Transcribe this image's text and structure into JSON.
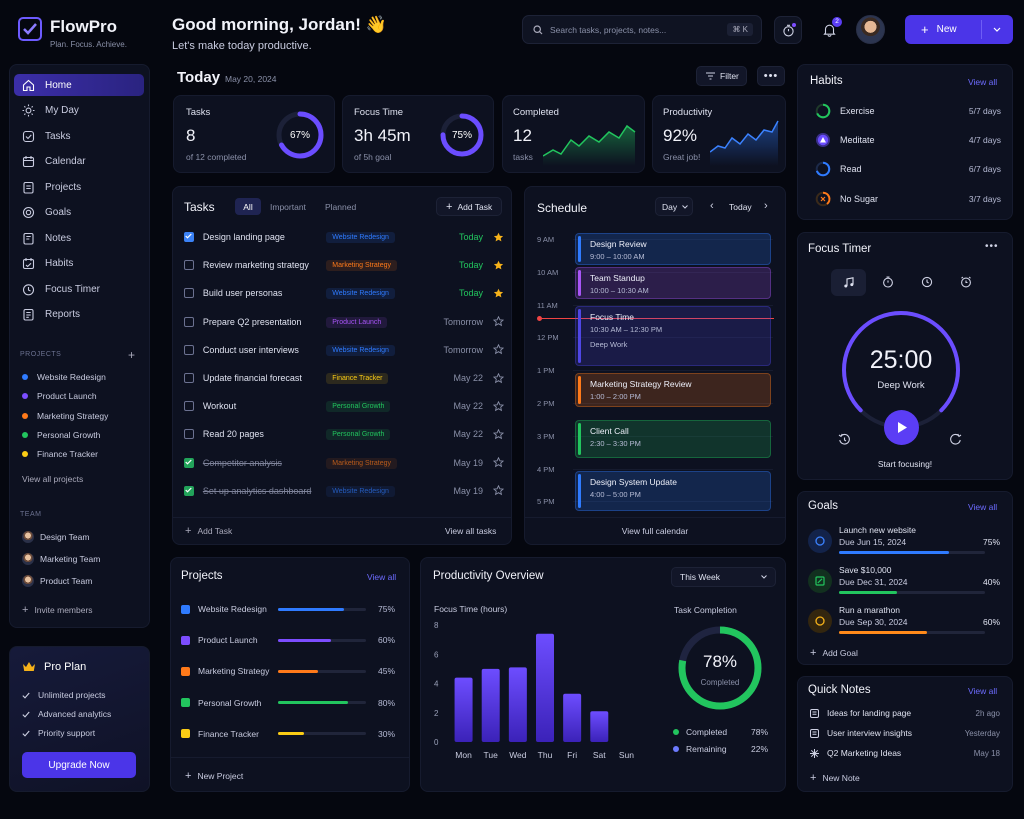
{
  "brand": {
    "name": "FlowPro",
    "tagline": "Plan. Focus. Achieve."
  },
  "header": {
    "greeting": "Good morning, Jordan! 👋",
    "subgreeting": "Let's make today productive.",
    "search_placeholder": "Search tasks, projects, notes...",
    "search_shortcut": "⌘ K",
    "notification_count": "2",
    "new_label": "New"
  },
  "sidebar": {
    "items": [
      {
        "label": "Home",
        "icon": "home-icon",
        "active": true
      },
      {
        "label": "My Day",
        "icon": "sun-icon"
      },
      {
        "label": "Tasks",
        "icon": "check-square-icon"
      },
      {
        "label": "Calendar",
        "icon": "calendar-icon"
      },
      {
        "label": "Projects",
        "icon": "folder-icon"
      },
      {
        "label": "Goals",
        "icon": "target-icon"
      },
      {
        "label": "Notes",
        "icon": "note-icon"
      },
      {
        "label": "Habits",
        "icon": "habit-icon"
      },
      {
        "label": "Focus Timer",
        "icon": "clock-icon"
      },
      {
        "label": "Reports",
        "icon": "report-icon"
      }
    ],
    "projects_heading": "PROJECTS",
    "projects": [
      {
        "name": "Website Redesign",
        "color": "#2f7bff"
      },
      {
        "name": "Product Launch",
        "color": "#7c4dff"
      },
      {
        "name": "Marketing Strategy",
        "color": "#ff7a1a"
      },
      {
        "name": "Personal Growth",
        "color": "#22c55e"
      },
      {
        "name": "Finance Tracker",
        "color": "#facc15"
      }
    ],
    "view_all_projects": "View all projects",
    "team_heading": "TEAM",
    "teams": [
      "Design Team",
      "Marketing Team",
      "Product Team"
    ],
    "invite": "Invite members",
    "pro": {
      "title": "Pro Plan",
      "features": [
        "Unlimited projects",
        "Advanced analytics",
        "Priority support"
      ],
      "cta": "Upgrade Now"
    }
  },
  "today": {
    "title": "Today",
    "date": "May 20, 2024",
    "filter": "Filter"
  },
  "stats": [
    {
      "label": "Tasks",
      "value": "8",
      "sub": "of 12 completed",
      "ring": "67%",
      "ring_value": 0.67
    },
    {
      "label": "Focus Time",
      "value": "3h 45m",
      "sub": "of 5h goal",
      "ring": "75%",
      "ring_value": 0.75
    },
    {
      "label": "Completed",
      "value": "12",
      "sub": "tasks"
    },
    {
      "label": "Productivity",
      "value": "92%",
      "sub": "Great job!"
    }
  ],
  "tasks": {
    "title": "Tasks",
    "tabs": [
      "All",
      "Important",
      "Planned"
    ],
    "add": "Add Task",
    "footer_add": "Add Task",
    "footer_view": "View all tasks",
    "rows": [
      {
        "name": "Design landing page",
        "tag": "Website Redesign",
        "tag_color": "#2f7bff",
        "date": "Today",
        "today": true,
        "starred": true,
        "checked": true,
        "done": false
      },
      {
        "name": "Review marketing strategy",
        "tag": "Marketing Strategy",
        "tag_color": "#ff7a1a",
        "date": "Today",
        "today": true,
        "starred": true,
        "checked": false,
        "done": false
      },
      {
        "name": "Build user personas",
        "tag": "Website Redesign",
        "tag_color": "#2f7bff",
        "date": "Today",
        "today": true,
        "starred": true,
        "checked": false,
        "done": false
      },
      {
        "name": "Prepare Q2 presentation",
        "tag": "Product Launch",
        "tag_color": "#a855f7",
        "date": "Tomorrow",
        "today": false,
        "starred": false,
        "checked": false,
        "done": false
      },
      {
        "name": "Conduct user interviews",
        "tag": "Website Redesign",
        "tag_color": "#2f7bff",
        "date": "Tomorrow",
        "today": false,
        "starred": false,
        "checked": false,
        "done": false
      },
      {
        "name": "Update financial forecast",
        "tag": "Finance Tracker",
        "tag_color": "#facc15",
        "date": "May 22",
        "today": false,
        "starred": false,
        "checked": false,
        "done": false
      },
      {
        "name": "Workout",
        "tag": "Personal Growth",
        "tag_color": "#22c55e",
        "date": "May 22",
        "today": false,
        "starred": false,
        "checked": false,
        "done": false
      },
      {
        "name": "Read 20 pages",
        "tag": "Personal Growth",
        "tag_color": "#22c55e",
        "date": "May 22",
        "today": false,
        "starred": false,
        "checked": false,
        "done": false
      },
      {
        "name": "Competitor analysis",
        "tag": "Marketing Strategy",
        "tag_color": "#ff7a1a",
        "date": "May 19",
        "today": false,
        "starred": false,
        "checked": true,
        "done": true
      },
      {
        "name": "Set up analytics dashboard",
        "tag": "Website Redesign",
        "tag_color": "#2f7bff",
        "date": "May 19",
        "today": false,
        "starred": false,
        "checked": true,
        "done": true
      }
    ]
  },
  "schedule": {
    "title": "Schedule",
    "view": "Day",
    "today": "Today",
    "footer": "View full calendar",
    "hours": [
      "9 AM",
      "10 AM",
      "11 AM",
      "12 PM",
      "1 PM",
      "2 PM",
      "3 PM",
      "4 PM",
      "5 PM"
    ],
    "events": [
      {
        "title": "Design Review",
        "time": "9:00 – 10:00 AM",
        "color": "#2f7bff"
      },
      {
        "title": "Team Standup",
        "time": "10:00 – 10:30 AM",
        "color": "#a855f7"
      },
      {
        "title": "Focus Time",
        "time": "10:30 AM – 12:30 PM",
        "note": "Deep Work",
        "color": "#4f46e5"
      },
      {
        "title": "Marketing Strategy Review",
        "time": "1:00 – 2:00 PM",
        "color": "#ff7a1a"
      },
      {
        "title": "Client Call",
        "time": "2:30 – 3:30 PM",
        "color": "#22c55e"
      },
      {
        "title": "Design System Update",
        "time": "4:00 – 5:00 PM",
        "color": "#2f7bff"
      }
    ]
  },
  "habits": {
    "title": "Habits",
    "view_all": "View all",
    "items": [
      {
        "name": "Exercise",
        "value": "5/7 days",
        "color": "#22c55e"
      },
      {
        "name": "Meditate",
        "value": "4/7 days",
        "color": "#7c4dff"
      },
      {
        "name": "Read",
        "value": "6/7 days",
        "color": "#2f7bff"
      },
      {
        "name": "No Sugar",
        "value": "3/7 days",
        "color": "#ff7a1a"
      }
    ]
  },
  "focus": {
    "title": "Focus Timer",
    "time": "25:00",
    "mode": "Deep Work",
    "cta": "Start focusing!"
  },
  "goals": {
    "title": "Goals",
    "view_all": "View all",
    "add": "Add Goal",
    "items": [
      {
        "name": "Launch new website",
        "due": "Due Jun 15, 2024",
        "pct": "75%",
        "value": 0.75,
        "color": "#2f7bff"
      },
      {
        "name": "Save $10,000",
        "due": "Due Dec 31, 2024",
        "pct": "40%",
        "value": 0.4,
        "color": "#22c55e"
      },
      {
        "name": "Run a marathon",
        "due": "Due Sep 30, 2024",
        "pct": "60%",
        "value": 0.6,
        "color": "#ff8a1a"
      }
    ]
  },
  "quicknotes": {
    "title": "Quick Notes",
    "view_all": "View all",
    "add": "New Note",
    "items": [
      {
        "name": "Ideas for landing page",
        "date": "2h ago"
      },
      {
        "name": "User interview insights",
        "date": "Yesterday"
      },
      {
        "name": "Q2 Marketing Ideas",
        "date": "May 18"
      }
    ]
  },
  "projects_card": {
    "title": "Projects",
    "view_all": "View all",
    "add": "New Project",
    "items": [
      {
        "name": "Website Redesign",
        "pct": "75%",
        "value": 0.75,
        "color": "#2f7bff"
      },
      {
        "name": "Product Launch",
        "pct": "60%",
        "value": 0.6,
        "color": "#7c4dff"
      },
      {
        "name": "Marketing Strategy",
        "pct": "45%",
        "value": 0.45,
        "color": "#ff7a1a"
      },
      {
        "name": "Personal Growth",
        "pct": "80%",
        "value": 0.8,
        "color": "#22c55e"
      },
      {
        "name": "Finance Tracker",
        "pct": "30%",
        "value": 0.3,
        "color": "#facc15"
      }
    ]
  },
  "overview": {
    "title": "Productivity Overview",
    "period": "This Week",
    "completion_title": "Task Completion",
    "completion_value": "78%",
    "completion_fraction": 0.78,
    "completion_label": "Completed",
    "legend": [
      {
        "name": "Completed",
        "value": "78%",
        "color": "#22c55e"
      },
      {
        "name": "Remaining",
        "value": "22%",
        "color": "#6d7bff"
      }
    ]
  },
  "chart_data": {
    "type": "bar",
    "title": "Focus Time (hours)",
    "categories": [
      "Mon",
      "Tue",
      "Wed",
      "Thu",
      "Fri",
      "Sat",
      "Sun"
    ],
    "values": [
      4.4,
      5.0,
      5.1,
      7.4,
      3.3,
      2.1,
      0
    ],
    "ylim": [
      0,
      8
    ],
    "yticks": [
      "0",
      "2",
      "4",
      "6",
      "8"
    ],
    "color": "#5b3df5"
  }
}
